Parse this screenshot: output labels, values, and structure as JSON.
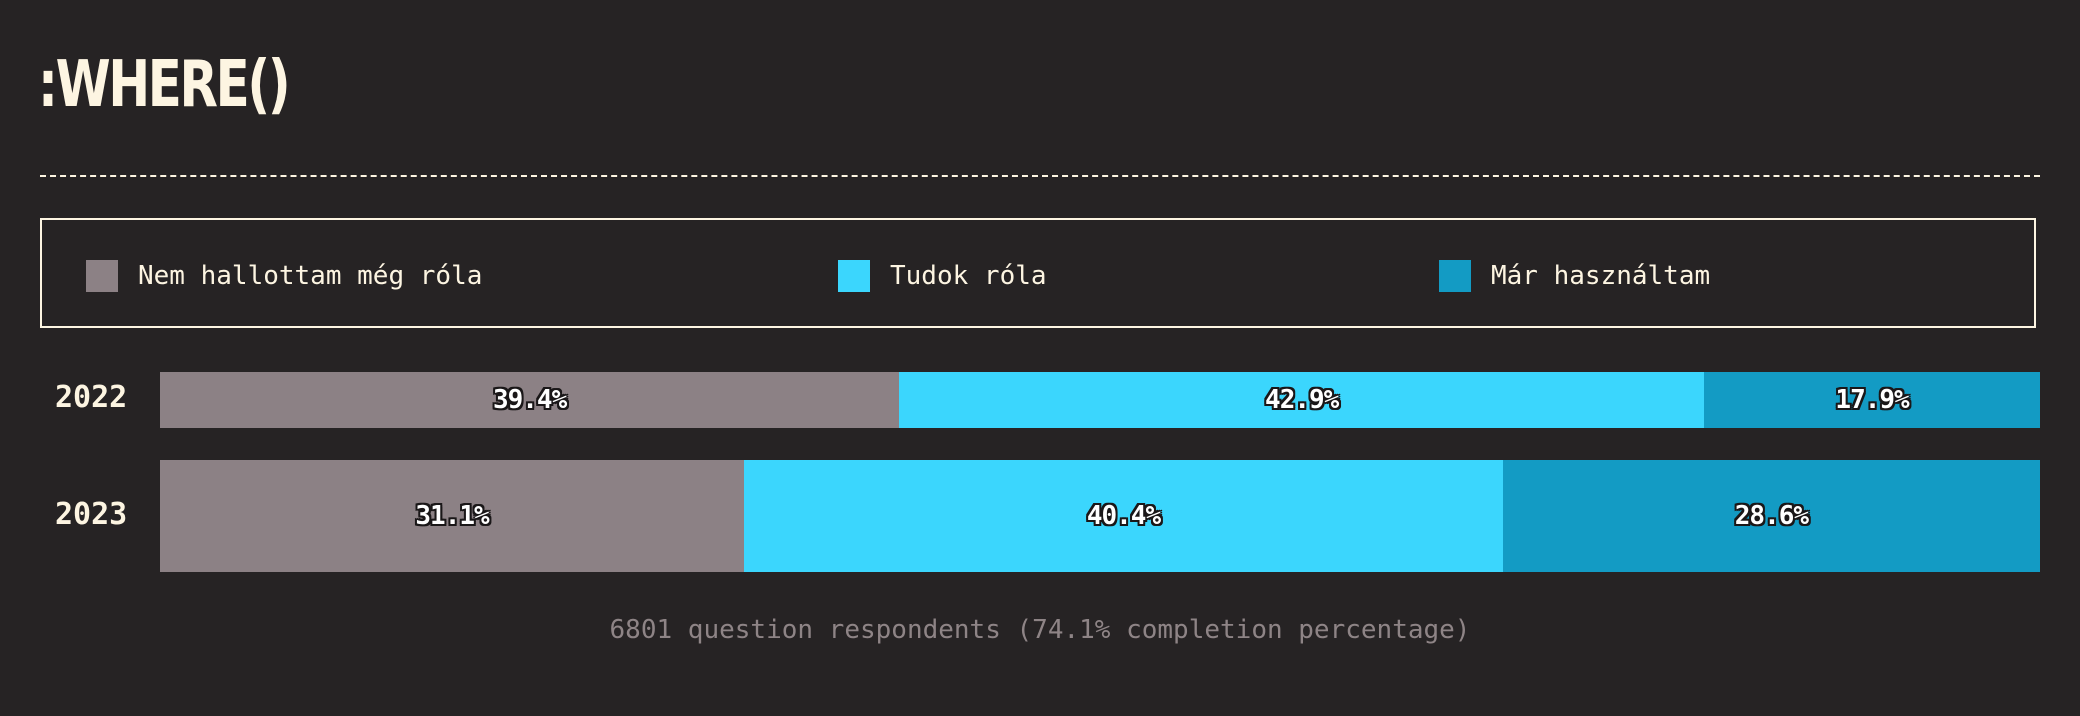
{
  "title": ":WHERE()",
  "colors": {
    "background": "#262324",
    "text": "#fdf5e2",
    "never_heard": "#8c8185",
    "know_about": "#3bd6fd",
    "used": "#139bc4"
  },
  "legend": {
    "items": [
      {
        "label": "Nem hallottam még róla",
        "color": "#8c8185"
      },
      {
        "label": "Tudok róla",
        "color": "#3bd6fd"
      },
      {
        "label": "Már használtam",
        "color": "#139bc4"
      }
    ]
  },
  "chart_data": {
    "type": "bar",
    "orientation": "horizontal",
    "stacked": true,
    "categories": [
      "2022",
      "2023"
    ],
    "series": [
      {
        "name": "Nem hallottam még róla",
        "values": [
          39.4,
          31.1
        ],
        "labels": [
          "39.4%",
          "31.1%"
        ]
      },
      {
        "name": "Tudok róla",
        "values": [
          42.9,
          40.4
        ],
        "labels": [
          "42.9%",
          "40.4%"
        ]
      },
      {
        "name": "Már használtam",
        "values": [
          17.9,
          28.6
        ],
        "labels": [
          "17.9%",
          "28.6%"
        ]
      }
    ],
    "xlim": [
      0,
      100
    ],
    "title": ":WHERE()",
    "legend_position": "top"
  },
  "footer": "6801 question respondents (74.1% completion percentage)"
}
